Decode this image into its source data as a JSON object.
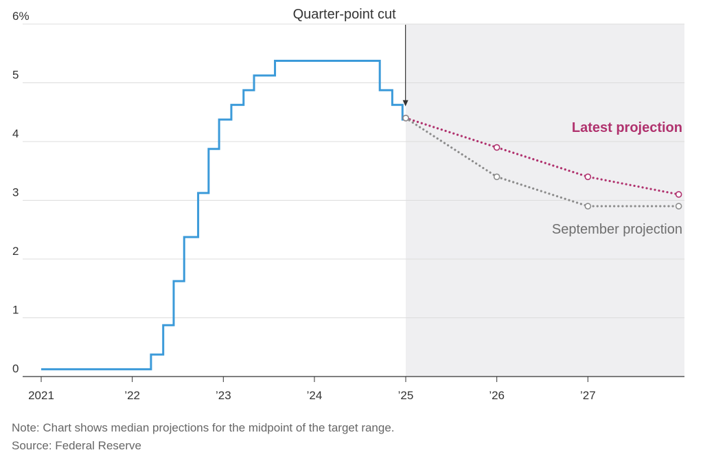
{
  "chart_data": {
    "type": "line",
    "y_unit_label": "6%",
    "yticks": [
      "0",
      "1",
      "2",
      "3",
      "4",
      "5"
    ],
    "ylim": [
      0,
      6
    ],
    "xlim": [
      "2021-01-01",
      "2027-12-31"
    ],
    "xticks": [
      {
        "date": "2021-01-01",
        "label": "2021"
      },
      {
        "date": "2022-01-01",
        "label": "’22"
      },
      {
        "date": "2023-01-01",
        "label": "’23"
      },
      {
        "date": "2024-01-01",
        "label": "’24"
      },
      {
        "date": "2025-01-01",
        "label": "’25"
      },
      {
        "date": "2026-01-01",
        "label": "’26"
      },
      {
        "date": "2027-01-01",
        "label": "’27"
      }
    ],
    "projection_region_start": "2025-01-01",
    "grid": true,
    "series": [
      {
        "color": "#3b9ad9",
        "step": true,
        "points": [
          [
            "2021-01-01",
            0.125
          ],
          [
            "2022-03-17",
            0.375
          ],
          [
            "2022-05-05",
            0.875
          ],
          [
            "2022-06-16",
            1.625
          ],
          [
            "2022-07-28",
            2.375
          ],
          [
            "2022-09-22",
            3.125
          ],
          [
            "2022-11-03",
            3.875
          ],
          [
            "2022-12-15",
            4.375
          ],
          [
            "2023-02-02",
            4.625
          ],
          [
            "2023-03-23",
            4.875
          ],
          [
            "2023-05-04",
            5.125
          ],
          [
            "2023-07-27",
            5.375
          ],
          [
            "2024-09-19",
            4.875
          ],
          [
            "2024-11-08",
            4.625
          ],
          [
            "2024-12-19",
            4.375
          ]
        ],
        "end": "2025-01-01"
      },
      {
        "name": "Latest projection",
        "color": "#b0326e",
        "dotted": true,
        "points": [
          [
            "2025-01-01",
            4.4
          ],
          [
            "2026-01-01",
            3.9
          ],
          [
            "2027-01-01",
            3.4
          ],
          [
            "2027-12-31",
            3.1
          ]
        ]
      },
      {
        "name": "September projection",
        "color": "#8c8c8c",
        "dotted": true,
        "points": [
          [
            "2025-01-01",
            4.4
          ],
          [
            "2026-01-01",
            3.4
          ],
          [
            "2027-01-01",
            2.9
          ],
          [
            "2027-12-31",
            2.9
          ]
        ]
      }
    ],
    "annotation": {
      "text": "Quarter-point cut",
      "date": "2024-12-31",
      "value": 4.6
    },
    "legend": {
      "latest": "Latest projection",
      "september": "September projection"
    }
  },
  "notes": {
    "note": "Note: Chart shows median projections for the midpoint of the target range.",
    "source": "Source: Federal Reserve"
  }
}
